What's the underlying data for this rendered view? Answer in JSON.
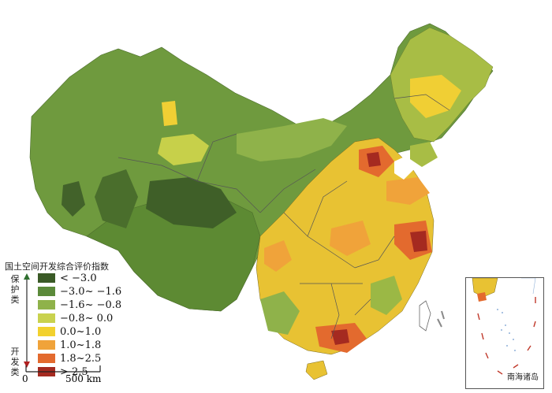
{
  "legend": {
    "title": "国土空间开发综合评价指数",
    "top_label": [
      "保",
      "护",
      "类"
    ],
    "bottom_label": [
      "开",
      "发",
      "类"
    ],
    "items": [
      {
        "label": "< −3.0",
        "color": "#3a5a26"
      },
      {
        "label": "−3.0~ −1.6",
        "color": "#5b8a3a"
      },
      {
        "label": "−1.6~ −0.8",
        "color": "#8fb24a"
      },
      {
        "label": "−0.8~ 0.0",
        "color": "#c9d24e"
      },
      {
        "label": "0.0~1.0",
        "color": "#f2d12e"
      },
      {
        "label": "1.0~1.8",
        "color": "#f0a33a"
      },
      {
        "label": "1.8~2.5",
        "color": "#e36a2e"
      },
      {
        "label": "> 2.5",
        "color": "#a52a20"
      }
    ]
  },
  "scale": {
    "zero": "0",
    "label": "500 km"
  },
  "inset": {
    "label": "南海诸岛"
  },
  "colors": {
    "boundary": "#555555",
    "arrow_top": "#2f6f2f",
    "arrow_bottom": "#b02020"
  }
}
